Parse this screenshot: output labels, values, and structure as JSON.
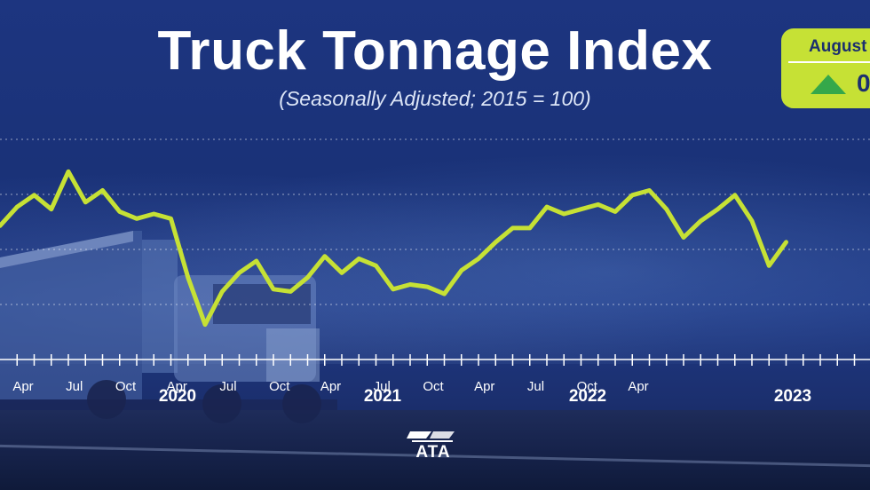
{
  "chart_data": {
    "type": "line",
    "title": "Truck Tonnage Index",
    "subtitle": "(Seasonally Adjusted; 2015 = 100)",
    "series": [
      {
        "name": "Truck Tonnage Index",
        "color": "#c6e135",
        "values": [
          115.5,
          116.3,
          116.8,
          116.2,
          117.8,
          116.5,
          117.0,
          116.1,
          115.8,
          116.0,
          115.8,
          113.3,
          111.3,
          112.7,
          113.5,
          114.0,
          112.8,
          112.7,
          113.3,
          114.2,
          113.5,
          114.1,
          113.8,
          112.8,
          113.0,
          112.9,
          112.6,
          113.6,
          114.1,
          114.8,
          115.4,
          115.4,
          116.3,
          116.0,
          116.2,
          116.4,
          116.1,
          116.8,
          117.0,
          116.2,
          115.0,
          115.7,
          116.2,
          116.8,
          115.7,
          113.8,
          114.8
        ]
      }
    ],
    "x_tick_labels": [
      "Apr",
      "Jul",
      "Oct",
      "Apr",
      "Jul",
      "Oct",
      "Apr",
      "Jul",
      "Oct",
      "Apr",
      "Jul",
      "Oct",
      "Apr"
    ],
    "year_labels": [
      "2020",
      "2021",
      "2022",
      "2023"
    ],
    "ylim": [
      110,
      120
    ],
    "grid": true,
    "callout": {
      "month": "August",
      "change": "0"
    }
  },
  "logo": {
    "text": "ATA"
  }
}
